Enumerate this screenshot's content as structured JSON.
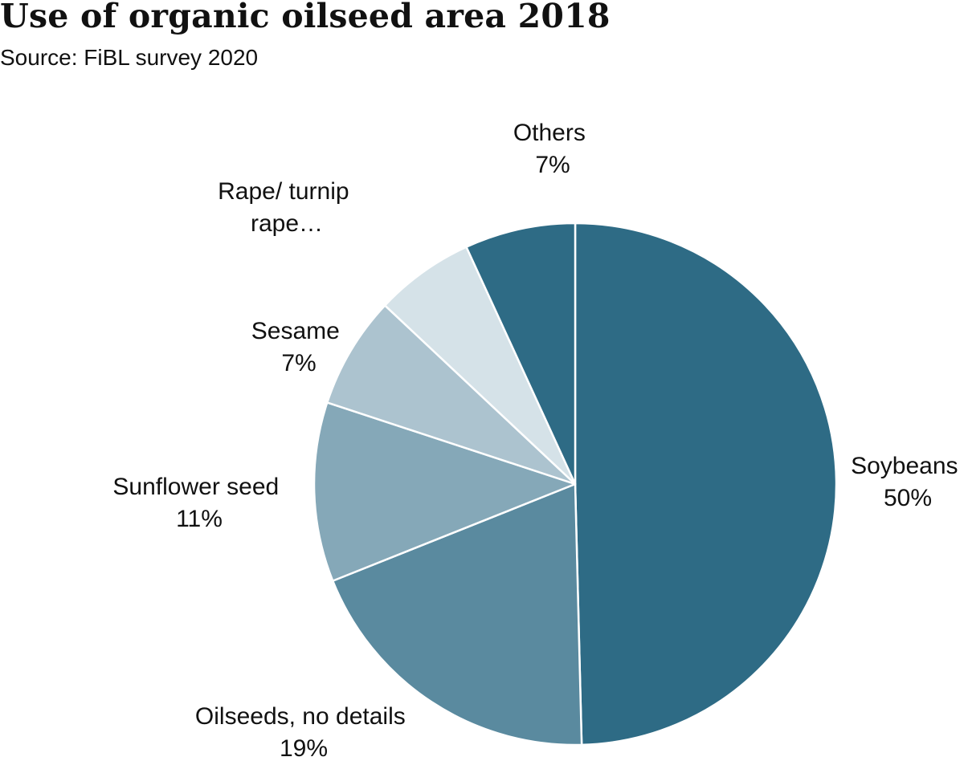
{
  "chart_data": {
    "type": "pie",
    "title": "Use of organic oilseed area 2018",
    "subtitle": "Source: FiBL survey 2020",
    "slices": [
      {
        "label": "Soybeans",
        "pct_label": "50%",
        "value": 50.0,
        "color": "#2e6b85"
      },
      {
        "label": "Oilseeds, no details",
        "pct_label": "19%",
        "value": 19.5,
        "color": "#5a8a9f"
      },
      {
        "label": "Sunflower seed",
        "pct_label": "11%",
        "value": 11.2,
        "color": "#85a8b8"
      },
      {
        "label": "Sesame",
        "pct_label": "7%",
        "value": 7.0,
        "color": "#acc3cf"
      },
      {
        "label": "Rape/ turnip rape…",
        "label_lines": [
          "Rape/ turnip",
          "rape…"
        ],
        "pct_label": "",
        "value": 6.2,
        "color": "#d5e2e8"
      },
      {
        "label": "Others",
        "pct_label": "7%",
        "value": 6.9,
        "color": "#2e6b85"
      }
    ]
  }
}
